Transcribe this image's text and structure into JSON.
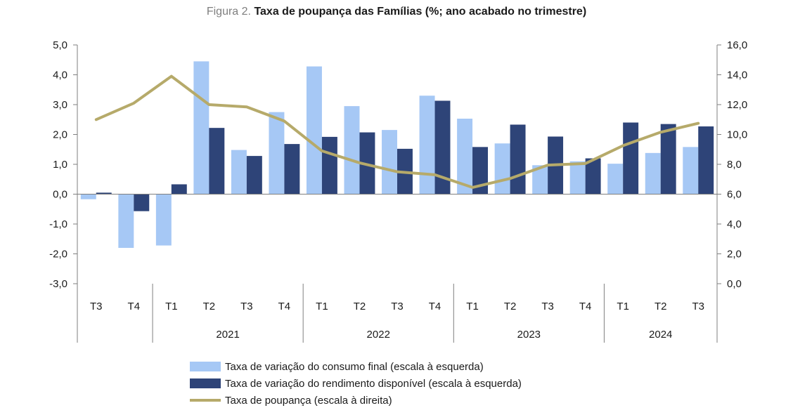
{
  "title": {
    "prefix": "Figura 2.",
    "main": "Taxa de poupança das Famílias (%; ano acabado no trimestre)"
  },
  "colors": {
    "consumo": "#a6c8f5",
    "rendimento": "#2e4478",
    "poupanca": "#b6aa6a",
    "axis": "#7f7f7f"
  },
  "chart_data": {
    "type": "bar+line",
    "title": "Taxa de poupança das Famílias (%; ano acabado no trimestre)",
    "categories": [
      "T3",
      "T4",
      "T1",
      "T2",
      "T3",
      "T4",
      "T1",
      "T2",
      "T3",
      "T4",
      "T1",
      "T2",
      "T3",
      "T4",
      "T1",
      "T2",
      "T3"
    ],
    "year_groups": [
      {
        "label": "",
        "span": 2
      },
      {
        "label": "2021",
        "span": 4
      },
      {
        "label": "2022",
        "span": 4
      },
      {
        "label": "2023",
        "span": 4
      },
      {
        "label": "2024",
        "span": 3
      }
    ],
    "left_axis": {
      "ylim": [
        -3.0,
        5.0
      ],
      "ticks": [
        "-3,0",
        "-2,0",
        "-1,0",
        "0,0",
        "1,0",
        "2,0",
        "3,0",
        "4,0",
        "5,0"
      ]
    },
    "right_axis": {
      "ylim": [
        0.0,
        16.0
      ],
      "ticks": [
        "0,0",
        "2,0",
        "4,0",
        "6,0",
        "8,0",
        "10,0",
        "12,0",
        "14,0",
        "16,0"
      ]
    },
    "series": [
      {
        "name": "Taxa de variação do consumo final (escala à esquerda)",
        "kind": "bar",
        "axis": "left",
        "values": [
          -0.17,
          -1.8,
          -1.72,
          4.45,
          1.48,
          2.75,
          4.28,
          2.95,
          2.15,
          3.3,
          2.53,
          1.7,
          0.97,
          1.1,
          1.02,
          1.38,
          1.58
        ]
      },
      {
        "name": "Taxa de variação do rendimento disponível (escala à esquerda)",
        "kind": "bar",
        "axis": "left",
        "values": [
          0.05,
          -0.57,
          0.33,
          2.22,
          1.28,
          1.68,
          1.92,
          2.07,
          1.52,
          3.13,
          1.58,
          2.33,
          1.93,
          1.2,
          2.4,
          2.35,
          2.27
        ]
      },
      {
        "name": "Taxa de poupança (escala à direita)",
        "kind": "line",
        "axis": "right",
        "values": [
          11.0,
          12.1,
          13.9,
          12.0,
          11.85,
          10.9,
          8.9,
          8.1,
          7.5,
          7.3,
          6.45,
          7.05,
          7.95,
          8.05,
          9.25,
          10.15,
          10.75
        ]
      }
    ]
  }
}
